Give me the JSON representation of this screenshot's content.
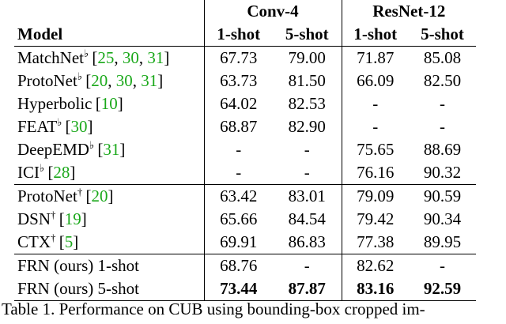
{
  "table": {
    "groups": [
      "Conv-4",
      "ResNet-12"
    ],
    "columns": [
      "Model",
      "1-shot",
      "5-shot",
      "1-shot",
      "5-shot"
    ],
    "row_groups": [
      [
        {
          "model": {
            "name": "MatchNet",
            "mark": "♭",
            "cite": "[25, 30, 31]"
          },
          "cells": [
            "67.73",
            "79.00",
            "71.87",
            "85.08"
          ]
        },
        {
          "model": {
            "name": "ProtoNet",
            "mark": "♭",
            "cite": "[20, 30, 31]"
          },
          "cells": [
            "63.73",
            "81.50",
            "66.09",
            "82.50"
          ]
        },
        {
          "model": {
            "name": "Hyperbolic",
            "cite": "[10]"
          },
          "cells": [
            "64.02",
            "82.53",
            "-",
            "-"
          ]
        },
        {
          "model": {
            "name": "FEAT",
            "mark": "♭",
            "cite": "[30]"
          },
          "cells": [
            "68.87",
            "82.90",
            "-",
            "-"
          ]
        },
        {
          "model": {
            "name": "DeepEMD",
            "mark": "♭",
            "cite": "[31]"
          },
          "cells": [
            "-",
            "-",
            "75.65",
            "88.69"
          ]
        },
        {
          "model": {
            "name": "ICI",
            "mark": "♭",
            "cite": "[28]"
          },
          "cells": [
            "-",
            "-",
            "76.16",
            "90.32"
          ]
        }
      ],
      [
        {
          "model": {
            "name": "ProtoNet",
            "mark": "†",
            "cite": "[20]"
          },
          "cells": [
            "63.42",
            "83.01",
            "79.09",
            "90.59"
          ]
        },
        {
          "model": {
            "name": "DSN",
            "mark": "†",
            "cite": "[19]"
          },
          "cells": [
            "65.66",
            "84.54",
            "79.42",
            "90.34"
          ]
        },
        {
          "model": {
            "name": "CTX",
            "mark": "†",
            "cite": "[5]"
          },
          "cells": [
            "69.91",
            "86.83",
            "77.38",
            "89.95"
          ]
        }
      ],
      [
        {
          "model": {
            "name": "FRN (ours) 1-shot"
          },
          "cells": [
            "68.76",
            "-",
            "82.62",
            "-"
          ]
        },
        {
          "model": {
            "name": "FRN (ours) 5-shot"
          },
          "cells": [
            "73.44",
            "87.87",
            "83.16",
            "92.59"
          ],
          "bold": true
        }
      ]
    ]
  },
  "caption": "Table 1. Performance on CUB using bounding-box cropped im-"
}
